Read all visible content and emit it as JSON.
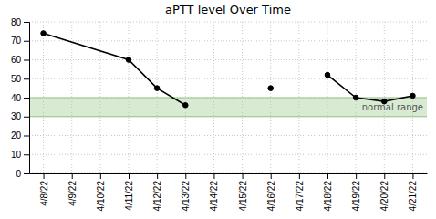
{
  "chart_data": {
    "type": "line",
    "title": "aPTT level Over Time",
    "categories": [
      "4/8/22",
      "4/9/22",
      "4/10/22",
      "4/11/22",
      "4/12/22",
      "4/13/22",
      "4/14/22",
      "4/15/22",
      "4/16/22",
      "4/17/22",
      "4/18/22",
      "4/19/22",
      "4/20/22",
      "4/21/22"
    ],
    "series": [
      {
        "x": [
          "4/8/22",
          "4/11/22",
          "4/12/22",
          "4/13/22"
        ],
        "values": [
          74,
          60,
          45,
          36
        ],
        "color": "#000000",
        "marker": "circle",
        "line_style": "solid"
      },
      {
        "x": [
          "4/18/22",
          "4/19/22",
          "4/20/22",
          "4/21/22"
        ],
        "values": [
          52,
          40,
          38,
          41
        ],
        "color": "#000000",
        "marker": "circle",
        "line_style": "solid"
      },
      {
        "x": [
          "4/16/22"
        ],
        "values": [
          45
        ],
        "color": "#000000",
        "marker": "circle",
        "line_style": "none"
      }
    ],
    "normal_range": {
      "low": 30,
      "high": 40,
      "label": "normal range",
      "color": "#d9ead3",
      "border_color": "#93c47d"
    },
    "ylim": [
      0,
      80
    ],
    "yticks": [
      0,
      10,
      20,
      30,
      40,
      50,
      60,
      70,
      80
    ],
    "grid": true
  }
}
